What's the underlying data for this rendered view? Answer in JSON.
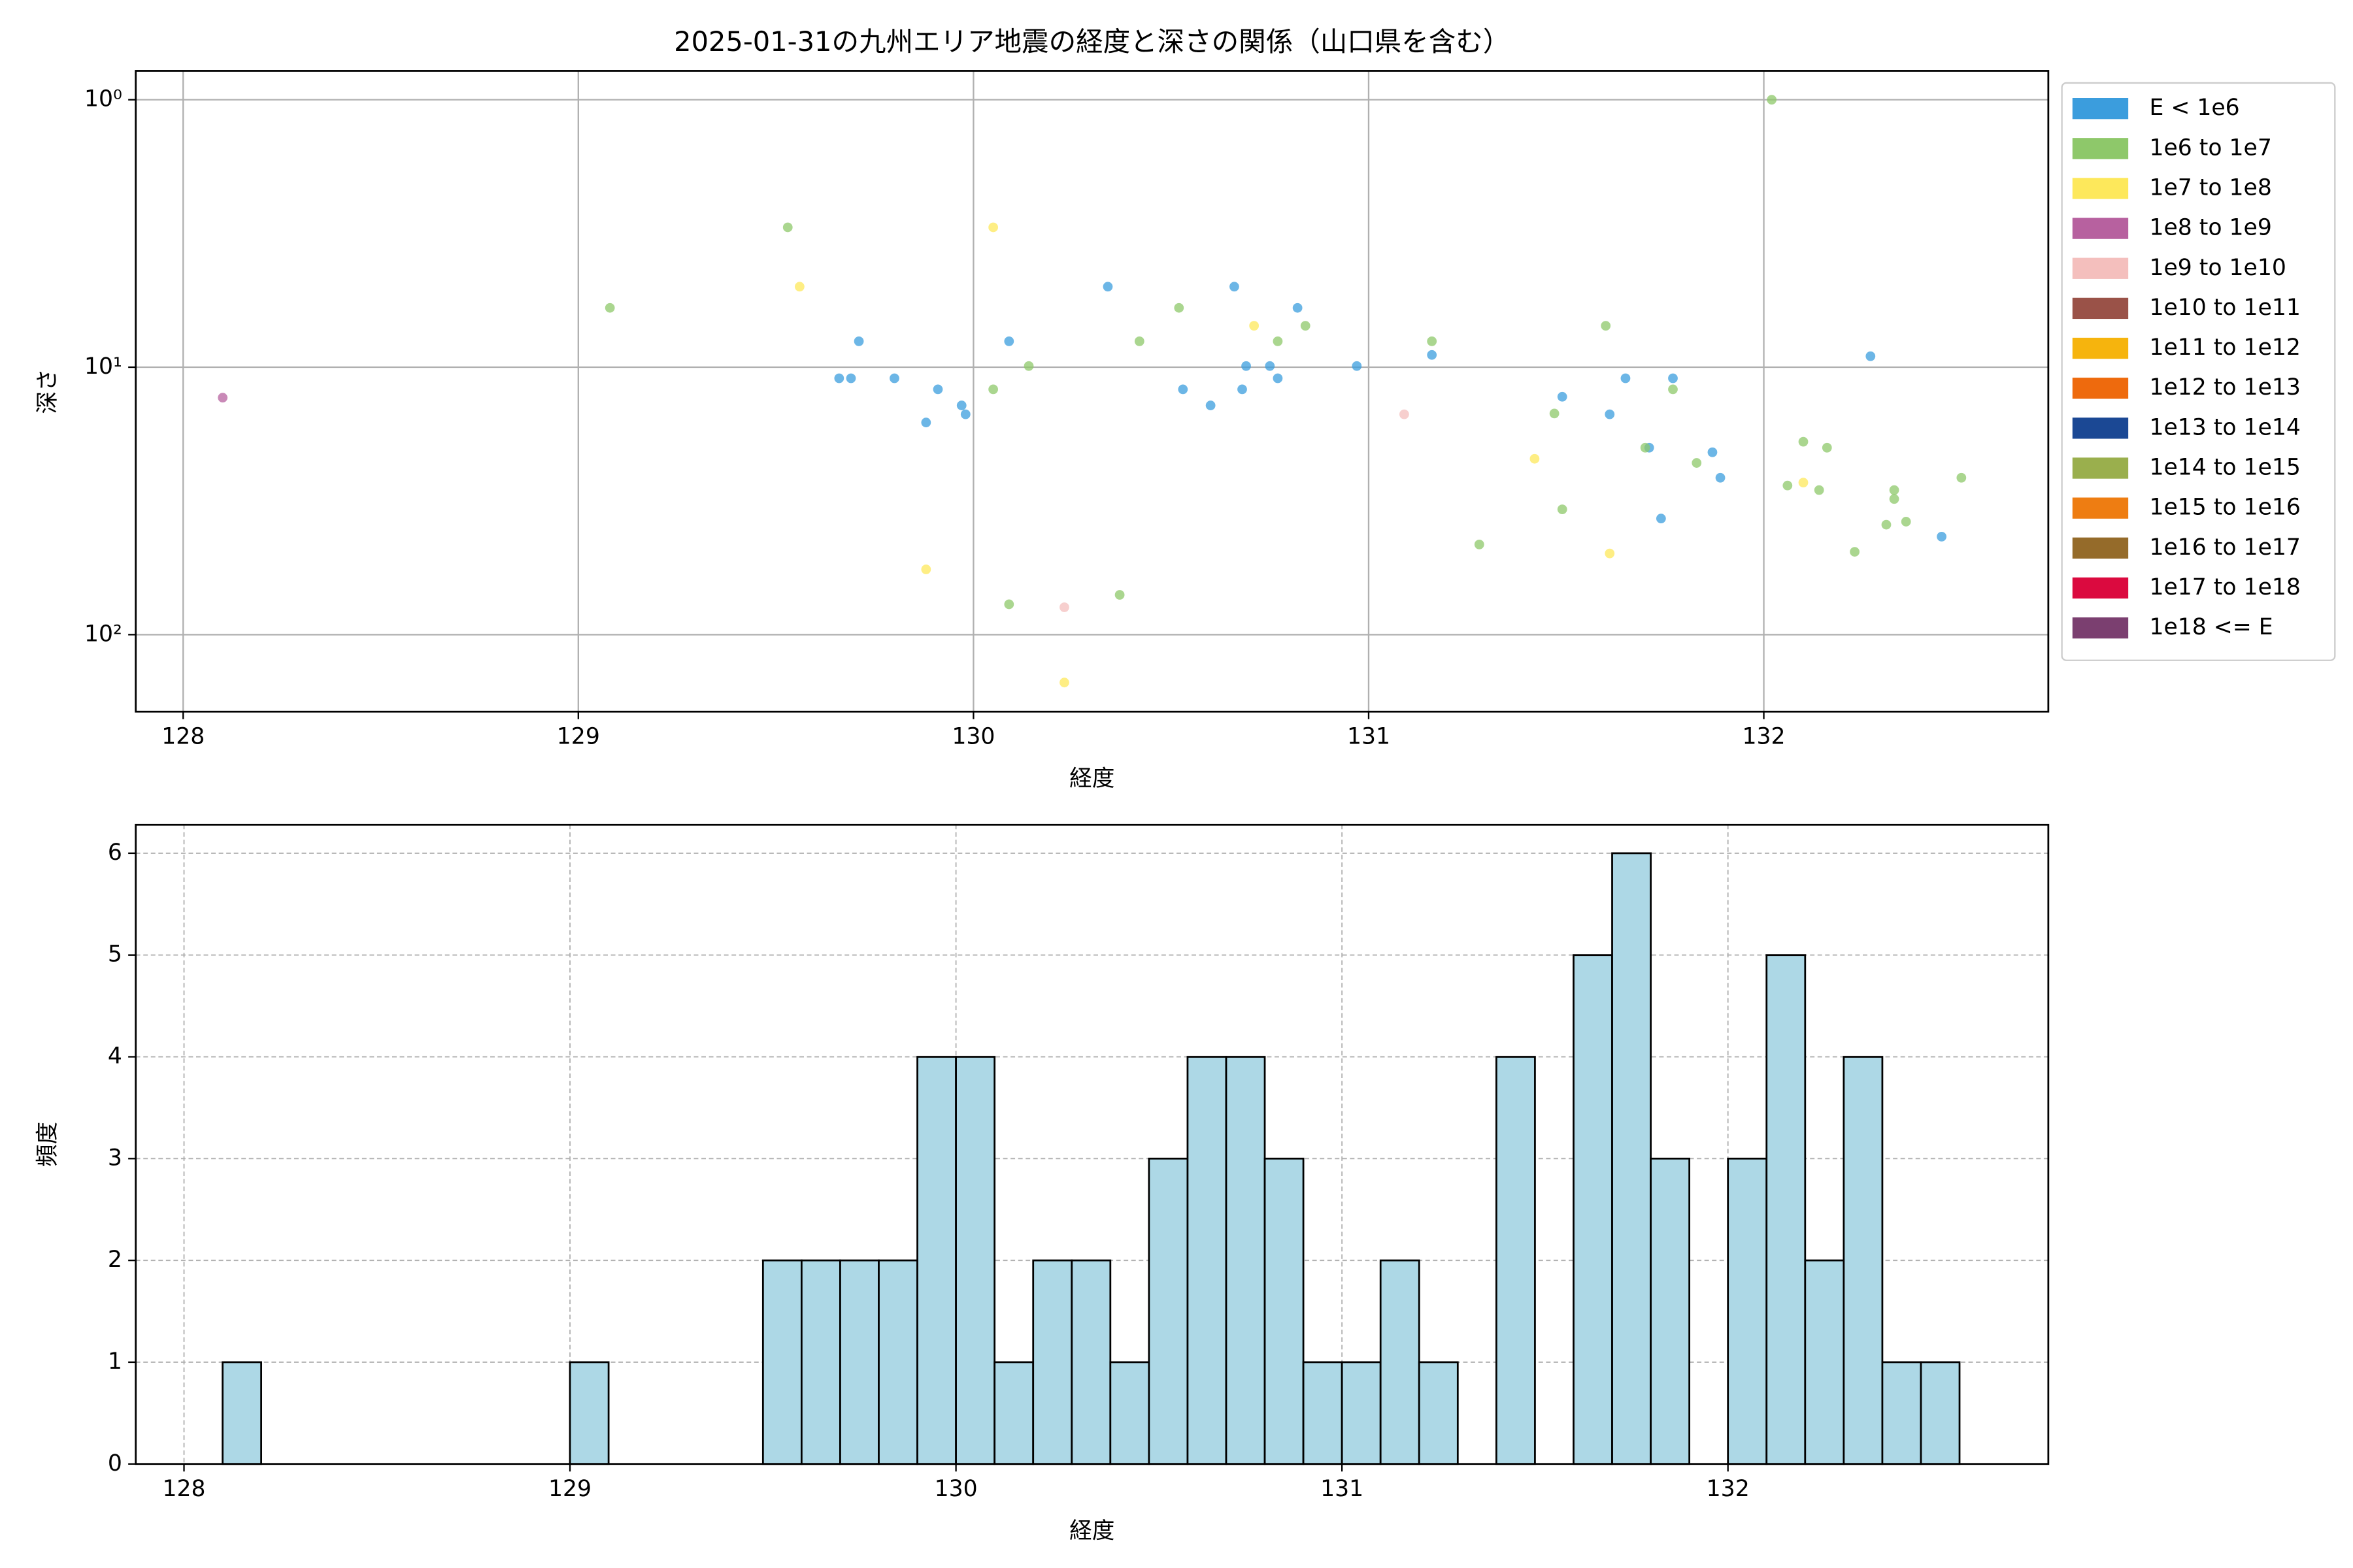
{
  "chart_data": [
    {
      "type": "scatter",
      "title": "2025-01-31の九州エリア地震の経度と深さの関係（山口県を含む）",
      "x_label": "経度",
      "y_label": "深さ",
      "xlim": [
        127.88,
        132.72
      ],
      "xticks": [
        128,
        129,
        130,
        131,
        132
      ],
      "ylim": [
        0.78,
        194
      ],
      "yscale": "log",
      "y_inverted": true,
      "yticks": [
        {
          "value": 1,
          "label": "10⁰"
        },
        {
          "value": 10,
          "label": "10¹"
        },
        {
          "value": 100,
          "label": "10²"
        }
      ],
      "grid": true,
      "legend": "outside right",
      "series": [
        {
          "name": "E < 1e6",
          "color": "#3b9ddd",
          "x": [
            129.71,
            129.66,
            129.69,
            129.8,
            129.88,
            129.91,
            129.97,
            129.98,
            130.09,
            130.34,
            130.53,
            130.6,
            130.66,
            130.69,
            130.68,
            130.75,
            130.77,
            130.82,
            130.97,
            131.16,
            131.49,
            131.61,
            131.65,
            131.71,
            131.74,
            131.77,
            131.87,
            131.89,
            132.27,
            132.45
          ],
          "values": [
            8.0,
            11.0,
            11.0,
            11.0,
            16.1,
            12.1,
            13.9,
            15.0,
            8.0,
            5.0,
            12.1,
            13.9,
            5.0,
            9.9,
            12.1,
            9.9,
            11.0,
            6.0,
            9.9,
            9.0,
            12.9,
            15.0,
            11.0,
            20,
            36.8,
            11.0,
            20.8,
            25.9,
            9.1,
            43
          ]
        },
        {
          "name": "1e6 to 1e7",
          "color": "#8ec86a",
          "x": [
            129.08,
            129.53,
            130.05,
            130.14,
            130.09,
            130.37,
            130.42,
            130.52,
            130.77,
            130.84,
            131.16,
            131.28,
            131.47,
            131.49,
            131.6,
            131.7,
            131.77,
            131.83,
            132.02,
            132.06,
            132.1,
            132.14,
            132.16,
            132.23,
            132.31,
            132.33,
            132.33,
            132.36,
            132.5
          ],
          "values": [
            6.0,
            3.0,
            12.1,
            9.9,
            77,
            71,
            8.0,
            6.0,
            8.0,
            7.0,
            8.0,
            46,
            14.9,
            34,
            7.0,
            20,
            12.1,
            22.8,
            1.0,
            27.7,
            19.0,
            28.8,
            20,
            49,
            38.8,
            28.8,
            31.1,
            37.8,
            25.9
          ]
        },
        {
          "name": "1e7 to 1e8",
          "color": "#fde85b",
          "x": [
            129.56,
            129.88,
            130.05,
            130.23,
            130.71,
            131.42,
            131.61,
            132.1
          ],
          "values": [
            5.0,
            57,
            3.0,
            151,
            7.0,
            22,
            49.7,
            27.0
          ]
        },
        {
          "name": "1e8 to 1e9",
          "color": "#b7619f",
          "x": [
            128.1
          ],
          "values": [
            13.0
          ]
        },
        {
          "name": "1e9 to 1e10",
          "color": "#f4bfbd",
          "x": [
            130.23,
            131.09
          ],
          "values": [
            79,
            15.0
          ]
        },
        {
          "name": "1e10 to 1e11",
          "color": "#9a5248",
          "x": [],
          "values": []
        },
        {
          "name": "1e11 to 1e12",
          "color": "#f6b40d",
          "x": [],
          "values": []
        },
        {
          "name": "1e12 to 1e13",
          "color": "#ee6a0d",
          "x": [],
          "values": []
        },
        {
          "name": "1e13 to 1e14",
          "color": "#1b4894",
          "x": [],
          "values": []
        },
        {
          "name": "1e14 to 1e15",
          "color": "#9aaf4d",
          "x": [],
          "values": []
        },
        {
          "name": "1e15 to 1e16",
          "color": "#ee7d12",
          "x": [],
          "values": []
        },
        {
          "name": "1e16 to 1e17",
          "color": "#956b2a",
          "x": [],
          "values": []
        },
        {
          "name": "1e17 to 1e18",
          "color": "#db0a3f",
          "x": [],
          "values": []
        },
        {
          "name": "1e18 <= E",
          "color": "#7b3f70",
          "x": [],
          "values": []
        }
      ]
    },
    {
      "type": "histogram",
      "x_label": "経度",
      "y_label": "頻度",
      "xlim": [
        127.875,
        132.83
      ],
      "xticks": [
        128,
        129,
        130,
        131,
        132
      ],
      "ylim": [
        0,
        6.28
      ],
      "yticks": [
        0,
        1,
        2,
        3,
        4,
        5,
        6
      ],
      "grid": "dashed",
      "color": "#add8e6",
      "edgecolor": "#000000",
      "bins": [
        128.1,
        128.2,
        128.3,
        128.4,
        128.5,
        128.6,
        128.7,
        128.8,
        128.9,
        129.0,
        129.1,
        129.2,
        129.3,
        129.4,
        129.5,
        129.6,
        129.7,
        129.8,
        129.9,
        130.0,
        130.1,
        130.2,
        130.3,
        130.4,
        130.5,
        130.6,
        130.7,
        130.8,
        130.9,
        131.0,
        131.1,
        131.2,
        131.3,
        131.4,
        131.5,
        131.6,
        131.7,
        131.8,
        131.9,
        132.0,
        132.1,
        132.2,
        132.3,
        132.4,
        132.5,
        132.6
      ],
      "values": [
        1,
        0,
        0,
        0,
        0,
        0,
        0,
        0,
        0,
        1,
        0,
        0,
        0,
        0,
        2,
        2,
        2,
        2,
        4,
        4,
        1,
        2,
        2,
        1,
        3,
        4,
        4,
        3,
        1,
        1,
        2,
        1,
        0,
        4,
        0,
        5,
        6,
        3,
        0,
        3,
        5,
        2,
        4,
        1,
        1
      ]
    }
  ]
}
